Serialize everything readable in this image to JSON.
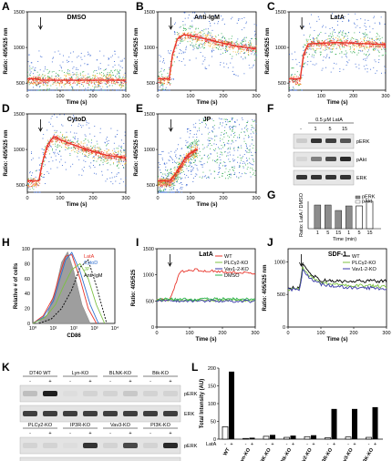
{
  "panel_labels": [
    "A",
    "B",
    "C",
    "D",
    "E",
    "F",
    "G",
    "H",
    "I",
    "J",
    "K",
    "L"
  ],
  "colors": {
    "density_high": "#e8352b",
    "density_mid": "#f2b52a",
    "density_low": "#2ba84a",
    "density_sparse": "#2f5fd0",
    "wt": "#e8352b",
    "plcg2": "#7cc142",
    "vav1": "#3a3aa8",
    "dmso": "#2bb24c",
    "black": "#000000"
  },
  "chart_data": [
    {
      "panel": "A",
      "type": "scatter",
      "title": "DMSO",
      "xlabel": "Time (s)",
      "ylabel": "Ratio: 405/525 nm",
      "xlim": [
        0,
        300
      ],
      "ylim": [
        400,
        1500
      ],
      "xticks": [
        0,
        100,
        200,
        300
      ],
      "yticks": [
        500,
        1000,
        1500
      ],
      "stimulus_time": 40,
      "trend": {
        "x": [
          0,
          30,
          40,
          100,
          200,
          300
        ],
        "y": [
          560,
          560,
          540,
          540,
          540,
          540
        ]
      }
    },
    {
      "panel": "B",
      "type": "scatter",
      "title": "Anti-IgM",
      "xlabel": "Time (s)",
      "ylabel": "Ratio: 405/525 nm",
      "xlim": [
        0,
        300
      ],
      "ylim": [
        400,
        1500
      ],
      "xticks": [
        0,
        100,
        200,
        300
      ],
      "yticks": [
        500,
        1000,
        1500
      ],
      "stimulus_time": 40,
      "trend": {
        "x": [
          0,
          35,
          45,
          60,
          80,
          120,
          180,
          240,
          300
        ],
        "y": [
          560,
          560,
          900,
          1120,
          1180,
          1150,
          1080,
          1020,
          980
        ]
      }
    },
    {
      "panel": "C",
      "type": "scatter",
      "title": "LatA",
      "xlabel": "Time (s)",
      "ylabel": "Ratio: 405/525 nm",
      "xlim": [
        0,
        300
      ],
      "ylim": [
        400,
        1500
      ],
      "xticks": [
        0,
        100,
        200,
        300
      ],
      "yticks": [
        500,
        1000,
        1500
      ],
      "stimulus_time": 40,
      "trend": {
        "x": [
          0,
          35,
          45,
          60,
          100,
          150,
          200,
          250,
          300
        ],
        "y": [
          560,
          560,
          900,
          1050,
          1060,
          1070,
          1060,
          1050,
          1040
        ]
      }
    },
    {
      "panel": "D",
      "type": "scatter",
      "title": "CytoD",
      "xlabel": "Time (s)",
      "ylabel": "Ratio: 405/525 nm",
      "xlim": [
        0,
        300
      ],
      "ylim": [
        400,
        1500
      ],
      "xticks": [
        0,
        100,
        200,
        300
      ],
      "yticks": [
        500,
        1000,
        1500
      ],
      "stimulus_time": 40,
      "trend": {
        "x": [
          0,
          35,
          45,
          60,
          80,
          120,
          180,
          240,
          300
        ],
        "y": [
          560,
          560,
          800,
          1050,
          1180,
          1100,
          1000,
          920,
          880
        ]
      }
    },
    {
      "panel": "E",
      "type": "scatter",
      "title": "JP",
      "xlabel": "Time (s)",
      "ylabel": "Ratio: 405/525 nm",
      "xlim": [
        0,
        300
      ],
      "ylim": [
        400,
        1500
      ],
      "xticks": [
        0,
        100,
        200,
        300
      ],
      "yticks": [
        500,
        1000,
        1500
      ],
      "stimulus_time": 40,
      "trend": {
        "x": [
          0,
          35,
          45,
          60,
          80,
          100,
          120
        ],
        "y": [
          560,
          560,
          600,
          700,
          850,
          950,
          1000
        ]
      }
    },
    {
      "panel": "G",
      "type": "bar",
      "ylabel": "Ratio: LatA / DMSO",
      "xlabel": "Time (min)",
      "categories": [
        "1",
        "5",
        "15",
        "1",
        "5",
        "15"
      ],
      "ylim": [
        0,
        3
      ],
      "series": [
        {
          "name": "pERK",
          "values": [
            2.6,
            2.6,
            2.0,
            2.5,
            0,
            0
          ]
        },
        {
          "name": "pAkt",
          "values": [
            0,
            0,
            0,
            0,
            2.5,
            3.0
          ]
        }
      ],
      "legend": [
        "pERK",
        "pAkt"
      ]
    },
    {
      "panel": "H",
      "type": "line",
      "ylabel": "Relative # of cells",
      "xlabel": "CD86",
      "xtick_labels": [
        "10⁰",
        "10¹",
        "10²",
        "10³",
        "10⁴"
      ],
      "ytick_labels": [
        "0",
        "20",
        "40",
        "60",
        "80",
        "100"
      ],
      "ylim": [
        0,
        100
      ],
      "xlim": [
        0,
        4
      ],
      "series": [
        {
          "name": "LatA",
          "x": [
            0,
            0.5,
            1,
            1.3,
            1.6,
            1.9,
            2.3,
            2.7,
            3.1
          ],
          "y": [
            0,
            10,
            35,
            65,
            90,
            92,
            60,
            20,
            0
          ]
        },
        {
          "name": "CytoD",
          "x": [
            0,
            0.5,
            1,
            1.3,
            1.6,
            1.9,
            2.3,
            2.8,
            3.2
          ],
          "y": [
            0,
            8,
            30,
            58,
            85,
            95,
            70,
            25,
            0
          ]
        },
        {
          "name": "JP",
          "x": [
            0,
            0.6,
            1.1,
            1.5,
            1.9,
            2.3,
            2.7,
            3.1,
            3.5
          ],
          "y": [
            0,
            8,
            25,
            50,
            72,
            80,
            60,
            25,
            0
          ]
        },
        {
          "name": "Anti-IgM",
          "x": [
            0.3,
            0.9,
            1.4,
            1.9,
            2.3,
            2.7,
            3.1,
            3.6
          ],
          "y": [
            0,
            6,
            20,
            45,
            75,
            85,
            50,
            0
          ]
        }
      ]
    },
    {
      "panel": "I",
      "type": "line",
      "title": "LatA",
      "xlabel": "Time (s)",
      "ylabel": "Ratio: 405/525",
      "xlim": [
        0,
        300
      ],
      "ylim": [
        0,
        1500
      ],
      "xticks": [
        0,
        100,
        200,
        300
      ],
      "yticks": [
        0,
        500,
        1000,
        1500
      ],
      "stimulus_time": 40,
      "series": [
        {
          "name": "WT",
          "x": [
            0,
            40,
            50,
            70,
            100,
            150,
            200,
            250,
            300
          ],
          "y": [
            520,
            520,
            700,
            1050,
            1100,
            1080,
            1060,
            1040,
            1020
          ]
        },
        {
          "name": "PLCγ2-KO",
          "x": [
            0,
            100,
            200,
            300
          ],
          "y": [
            520,
            510,
            520,
            510
          ]
        },
        {
          "name": "Vav1-2-KO",
          "x": [
            0,
            100,
            200,
            300
          ],
          "y": [
            500,
            500,
            500,
            490
          ]
        },
        {
          "name": "DMSO",
          "x": [
            0,
            100,
            200,
            300
          ],
          "y": [
            540,
            530,
            540,
            530
          ]
        }
      ]
    },
    {
      "panel": "J",
      "type": "line",
      "title": "SDF-1",
      "xlabel": "Time (s)",
      "ylabel": "Ratio: 405/525 nm",
      "xlim": [
        0,
        300
      ],
      "ylim": [
        0,
        1200
      ],
      "xticks": [
        0,
        100,
        200,
        300
      ],
      "yticks": [
        0,
        500,
        1000
      ],
      "stimulus_time": 40,
      "series": [
        {
          "name": "WT",
          "x": [
            0,
            35,
            45,
            55,
            70,
            100,
            150,
            200,
            250,
            300
          ],
          "y": [
            600,
            600,
            950,
            880,
            800,
            720,
            700,
            700,
            710,
            700
          ]
        },
        {
          "name": "PLCγ2-KO",
          "x": [
            0,
            35,
            45,
            55,
            70,
            100,
            150,
            200,
            250,
            300
          ],
          "y": [
            580,
            580,
            900,
            830,
            760,
            680,
            650,
            640,
            630,
            620
          ]
        },
        {
          "name": "Vav1-2-KO",
          "x": [
            0,
            35,
            45,
            55,
            70,
            100,
            150,
            200,
            250,
            300
          ],
          "y": [
            570,
            570,
            880,
            800,
            730,
            660,
            620,
            600,
            600,
            590
          ]
        }
      ]
    },
    {
      "panel": "L",
      "type": "bar",
      "ylabel": "Total Intensity (AU)",
      "row_label": "LatA",
      "categories": [
        "WT",
        "Lyn-KO",
        "BLNK-KO",
        "Btk-KO",
        "PLCγ2-KO",
        "IP3R-KO",
        "Vav3-KO",
        "PI3K-KO"
      ],
      "ylim": [
        0,
        200
      ],
      "yticks": [
        0,
        50,
        100,
        150,
        200
      ],
      "series": [
        {
          "name": "-",
          "values": [
            35,
            2,
            8,
            5,
            7,
            4,
            6,
            5
          ]
        },
        {
          "name": "+",
          "values": [
            190,
            4,
            12,
            10,
            11,
            85,
            85,
            90
          ]
        }
      ]
    }
  ],
  "panel_F": {
    "title": "0.5 μM LatA",
    "lanes": [
      "-",
      "1",
      "5",
      "15"
    ],
    "rows": [
      "pERK",
      "pAkt",
      "ERK"
    ],
    "intensity": {
      "pERK": [
        0.15,
        0.85,
        0.8,
        0.7
      ],
      "pAkt": [
        0.1,
        0.5,
        0.75,
        0.9
      ],
      "ERK": [
        0.85,
        0.85,
        0.85,
        0.85
      ]
    }
  },
  "panel_K": {
    "top": {
      "groups": [
        "DT40 WT",
        "Lyn-KO",
        "BLNK-KO",
        "Btk-KO"
      ],
      "lanes": [
        "-",
        "+",
        "-",
        "+",
        "-",
        "+",
        "-",
        "+"
      ],
      "rows": [
        "pERK",
        "ERK"
      ],
      "intensity": {
        "pERK": [
          0.2,
          0.95,
          0.05,
          0.1,
          0.1,
          0.15,
          0.1,
          0.1
        ],
        "ERK": [
          0.8,
          0.8,
          0.8,
          0.8,
          0.8,
          0.8,
          0.8,
          0.8
        ]
      }
    },
    "bottom": {
      "groups": [
        "PLCγ2-KO",
        "IP3R-KO",
        "Vav3-KO",
        "PI3K-KO"
      ],
      "lanes": [
        "-",
        "+",
        "-",
        "+",
        "-",
        "+",
        "-",
        "+"
      ],
      "rows": [
        "pERK",
        "ERK"
      ],
      "intensity": {
        "pERK": [
          0.1,
          0.1,
          0.05,
          0.85,
          0.1,
          0.75,
          0.1,
          0.9
        ],
        "ERK": [
          0.8,
          0.8,
          0.8,
          0.8,
          0.8,
          0.8,
          0.8,
          0.8
        ]
      }
    }
  }
}
